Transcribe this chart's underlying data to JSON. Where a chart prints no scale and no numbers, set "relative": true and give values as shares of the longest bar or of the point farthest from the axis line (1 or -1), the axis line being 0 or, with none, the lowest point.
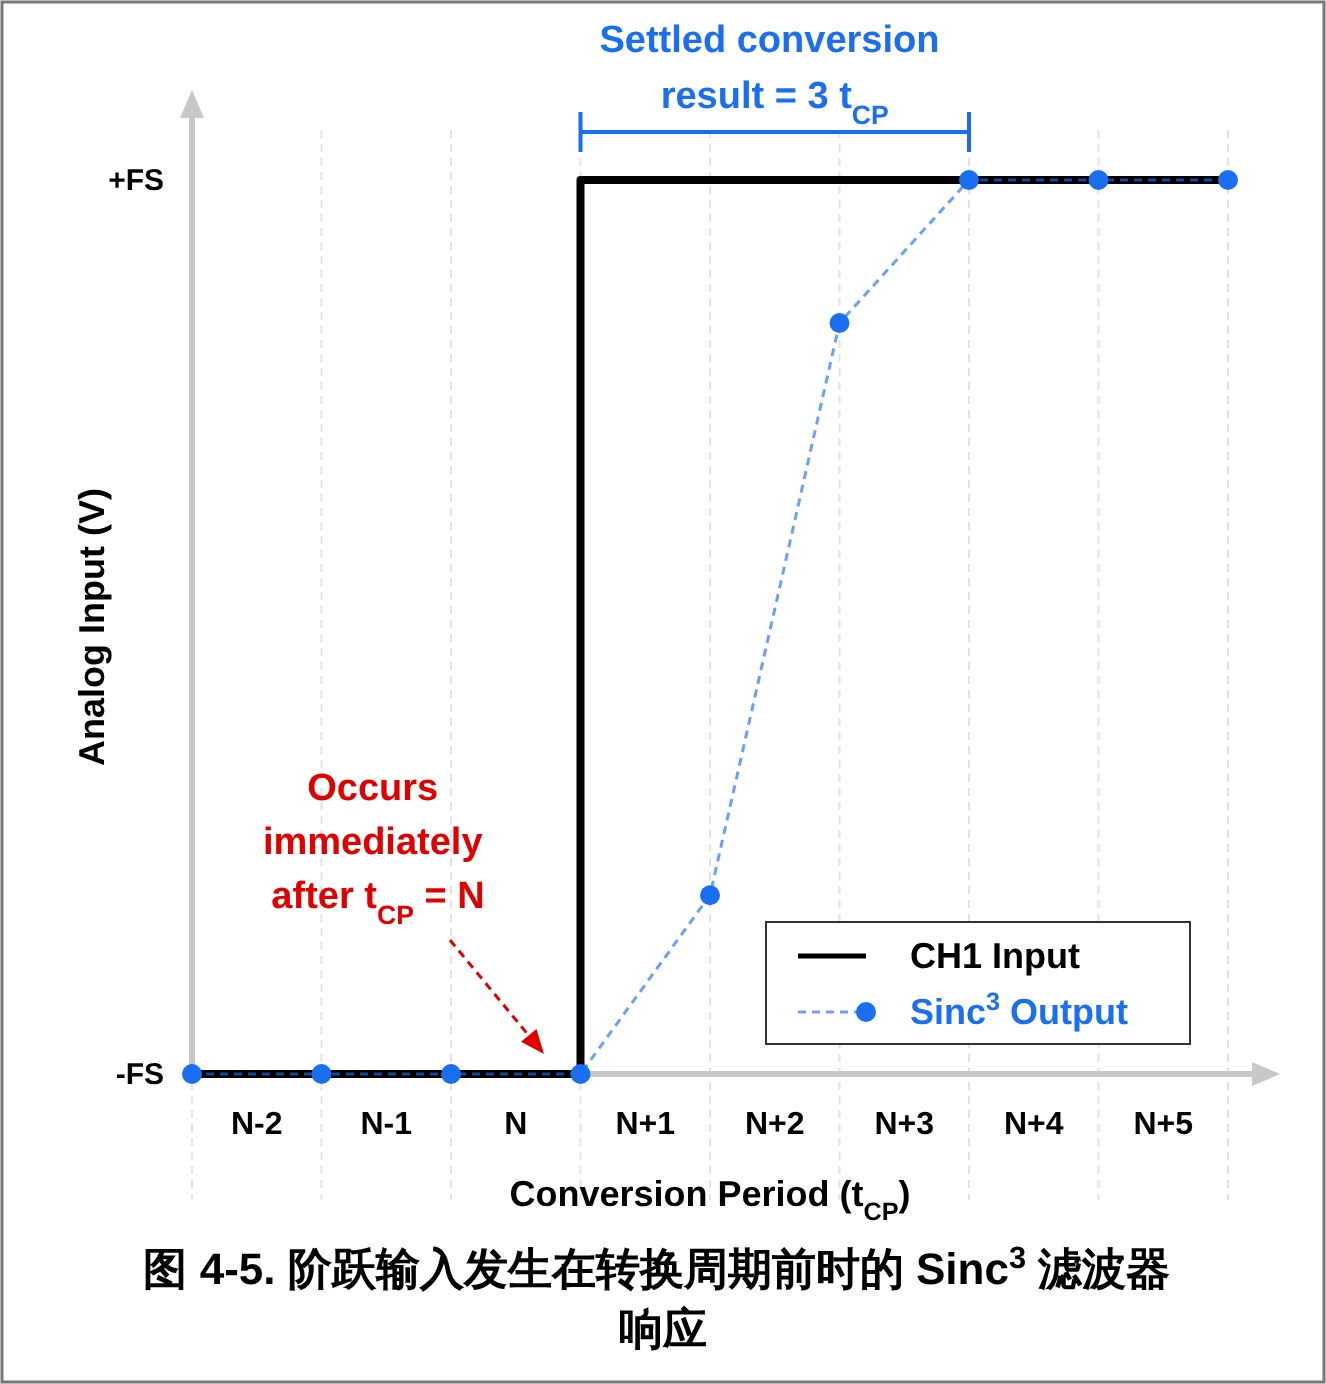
{
  "chart_data": {
    "type": "line",
    "title": "图 4-5. 阶跃输入发生在转换周期前时的 Sinc$^{3}$ 滤波器响应",
    "xlabel": "Conversion Period (t$_{CP}$)",
    "ylabel": "Analog Input (V)",
    "categories": [
      null,
      "N-2",
      null,
      "N-1",
      null,
      "N",
      null,
      "N+1",
      null,
      "N+2",
      null,
      "N+3",
      null,
      "N+4",
      null,
      "N+5",
      null
    ],
    "relative": true,
    "grid": "x",
    "legend": "bottom right",
    "series": [
      {
        "name": "CH1 Input",
        "type": "step",
        "color": "#000000",
        "values": [
          0,
          0,
          0,
          0,
          0,
          0,
          0,
          1,
          1,
          1,
          1,
          1,
          1,
          1,
          1,
          1,
          1
        ],
        "marker": "none",
        "line_style": "solid"
      },
      {
        "name": "Sinc$^{3}$ Output",
        "color": "#1a6ff0",
        "values": [
          0,
          null,
          0,
          null,
          0,
          null,
          0,
          null,
          0.2,
          null,
          0.84,
          null,
          1,
          null,
          1,
          null,
          1
        ],
        "marker": "circle",
        "line_style": "dashed"
      }
    ],
    "annotations": [
      {
        "text": "Settled conversion result = 3   t$_{CP}$",
        "x": "N+2",
        "y": 1
      },
      "Occurs immediately after t$_{CP}$ = N",
      "-FS",
      "+FS"
    ]
  }
}
